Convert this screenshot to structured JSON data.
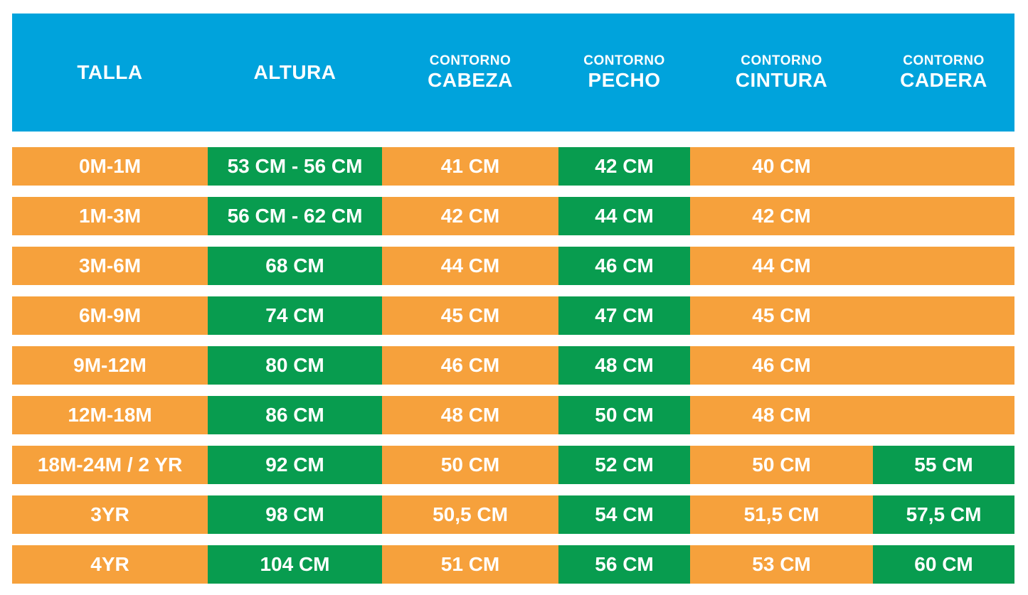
{
  "title": "children-size-chart",
  "colors": {
    "header_bg": "#00A3DC",
    "orange": "#F6A13C",
    "green": "#089C4F",
    "text": "#FFFFFF",
    "background": "#FFFFFF"
  },
  "header": {
    "columns": [
      {
        "top": "",
        "label": "TALLA"
      },
      {
        "top": "",
        "label": "ALTURA"
      },
      {
        "top": "CONTORNO",
        "label": "CABEZA"
      },
      {
        "top": "CONTORNO",
        "label": "PECHO"
      },
      {
        "top": "CONTORNO",
        "label": "CINTURA"
      },
      {
        "top": "CONTORNO",
        "label": "CADERA"
      }
    ]
  },
  "rows": [
    {
      "cells": [
        {
          "text": "0M-1M",
          "bg": "orange"
        },
        {
          "text": "53 CM - 56 CM",
          "bg": "green"
        },
        {
          "text": "41 CM",
          "bg": "orange"
        },
        {
          "text": "42 CM",
          "bg": "green"
        },
        {
          "text": "40 CM",
          "bg": "orange"
        },
        {
          "text": "",
          "bg": "orange"
        }
      ]
    },
    {
      "cells": [
        {
          "text": "1M-3M",
          "bg": "orange"
        },
        {
          "text": "56 CM - 62 CM",
          "bg": "green"
        },
        {
          "text": "42 CM",
          "bg": "orange"
        },
        {
          "text": "44 CM",
          "bg": "green"
        },
        {
          "text": "42 CM",
          "bg": "orange"
        },
        {
          "text": "",
          "bg": "orange"
        }
      ]
    },
    {
      "cells": [
        {
          "text": "3M-6M",
          "bg": "orange"
        },
        {
          "text": "68 CM",
          "bg": "green"
        },
        {
          "text": "44 CM",
          "bg": "orange"
        },
        {
          "text": "46 CM",
          "bg": "green"
        },
        {
          "text": "44 CM",
          "bg": "orange"
        },
        {
          "text": "",
          "bg": "orange"
        }
      ]
    },
    {
      "cells": [
        {
          "text": "6M-9M",
          "bg": "orange"
        },
        {
          "text": "74 CM",
          "bg": "green"
        },
        {
          "text": "45 CM",
          "bg": "orange"
        },
        {
          "text": "47 CM",
          "bg": "green"
        },
        {
          "text": "45 CM",
          "bg": "orange"
        },
        {
          "text": "",
          "bg": "orange"
        }
      ]
    },
    {
      "cells": [
        {
          "text": "9M-12M",
          "bg": "orange"
        },
        {
          "text": "80 CM",
          "bg": "green"
        },
        {
          "text": "46 CM",
          "bg": "orange"
        },
        {
          "text": "48 CM",
          "bg": "green"
        },
        {
          "text": "46 CM",
          "bg": "orange"
        },
        {
          "text": "",
          "bg": "orange"
        }
      ]
    },
    {
      "cells": [
        {
          "text": "12M-18M",
          "bg": "orange"
        },
        {
          "text": "86 CM",
          "bg": "green"
        },
        {
          "text": "48 CM",
          "bg": "orange"
        },
        {
          "text": "50 CM",
          "bg": "green"
        },
        {
          "text": "48 CM",
          "bg": "orange"
        },
        {
          "text": "",
          "bg": "orange"
        }
      ]
    },
    {
      "cells": [
        {
          "text": "18M-24M / 2 YR",
          "bg": "orange"
        },
        {
          "text": "92 CM",
          "bg": "green"
        },
        {
          "text": "50 CM",
          "bg": "orange"
        },
        {
          "text": "52 CM",
          "bg": "green"
        },
        {
          "text": "50 CM",
          "bg": "orange"
        },
        {
          "text": "55 CM",
          "bg": "green"
        }
      ]
    },
    {
      "cells": [
        {
          "text": "3YR",
          "bg": "orange"
        },
        {
          "text": "98 CM",
          "bg": "green"
        },
        {
          "text": "50,5 CM",
          "bg": "orange"
        },
        {
          "text": "54 CM",
          "bg": "green"
        },
        {
          "text": "51,5 CM",
          "bg": "orange"
        },
        {
          "text": "57,5 CM",
          "bg": "green"
        }
      ]
    },
    {
      "cells": [
        {
          "text": "4YR",
          "bg": "orange"
        },
        {
          "text": "104 CM",
          "bg": "green"
        },
        {
          "text": "51 CM",
          "bg": "orange"
        },
        {
          "text": "56 CM",
          "bg": "green"
        },
        {
          "text": "53 CM",
          "bg": "orange"
        },
        {
          "text": "60 CM",
          "bg": "green"
        }
      ]
    }
  ],
  "chart_data": {
    "type": "table",
    "title": "Tabla de tallas infantil (CM)",
    "columns": [
      "TALLA",
      "ALTURA",
      "CONTORNO CABEZA",
      "CONTORNO PECHO",
      "CONTORNO CINTURA",
      "CONTORNO CADERA"
    ],
    "rows": [
      [
        "0M-1M",
        "53 CM - 56 CM",
        "41 CM",
        "42 CM",
        "40 CM",
        ""
      ],
      [
        "1M-3M",
        "56 CM - 62 CM",
        "42 CM",
        "44 CM",
        "42 CM",
        ""
      ],
      [
        "3M-6M",
        "68 CM",
        "44 CM",
        "46 CM",
        "44 CM",
        ""
      ],
      [
        "6M-9M",
        "74 CM",
        "45 CM",
        "47 CM",
        "45 CM",
        ""
      ],
      [
        "9M-12M",
        "80 CM",
        "46 CM",
        "48 CM",
        "46 CM",
        ""
      ],
      [
        "12M-18M",
        "86 CM",
        "48 CM",
        "50 CM",
        "48 CM",
        ""
      ],
      [
        "18M-24M / 2 YR",
        "92 CM",
        "50 CM",
        "52 CM",
        "50 CM",
        "55 CM"
      ],
      [
        "3YR",
        "98 CM",
        "50,5 CM",
        "54 CM",
        "51,5 CM",
        "57,5 CM"
      ],
      [
        "4YR",
        "104 CM",
        "51 CM",
        "56 CM",
        "53 CM",
        "60 CM"
      ]
    ],
    "legend_position": "none",
    "grid": false
  }
}
